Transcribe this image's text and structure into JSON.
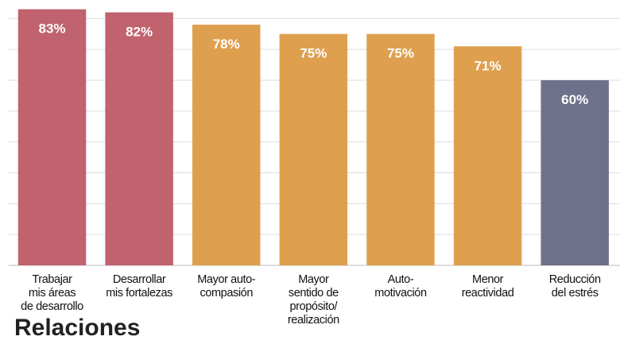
{
  "chart_data": {
    "type": "bar",
    "categories": [
      "Trabajar\nmis áreas\nde desarrollo",
      "Desarrollar\nmis fortalezas",
      "Mayor auto-\ncompasión",
      "Mayor\nsentido de\npropósito/\nrealización",
      "Auto-\nmotivación",
      "Menor\nreactividad",
      "Reducción\ndel estrés"
    ],
    "values": [
      83,
      82,
      78,
      75,
      75,
      71,
      60
    ],
    "value_labels": [
      "83%",
      "82%",
      "78%",
      "75%",
      "75%",
      "71%",
      "60%"
    ],
    "colors": [
      "#c0636e",
      "#c0636e",
      "#dea04f",
      "#dea04f",
      "#dea04f",
      "#dea04f",
      "#6f718a"
    ],
    "ylim": [
      0,
      86
    ],
    "yticks": [
      0,
      10,
      20,
      30,
      40,
      50,
      60,
      70,
      80
    ],
    "grid": true
  },
  "heading": "Relaciones"
}
